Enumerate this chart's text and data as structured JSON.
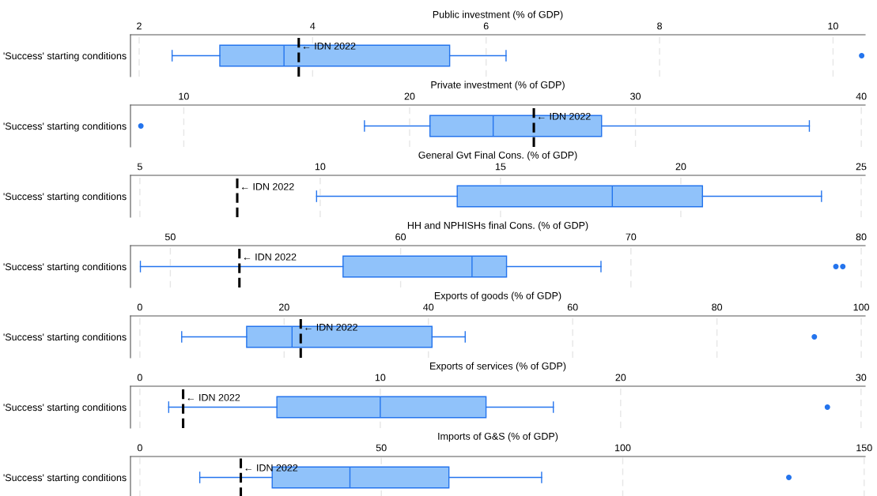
{
  "chart_data": [
    {
      "type": "box",
      "orientation": "horizontal",
      "xlabel": "Public investment (% of GDP)",
      "categories": [
        "'Success' starting conditions"
      ],
      "color": "#90c2fa",
      "grid": "x",
      "xlim": [
        1.9,
        10.37
      ],
      "xticks": [
        2,
        4,
        6,
        8,
        10
      ],
      "boxes": [
        {
          "low": 2.38,
          "q1": 2.93,
          "median": 3.67,
          "q3": 5.58,
          "high": 6.23,
          "outliers": [
            10.33
          ]
        }
      ],
      "ref_lines": [
        {
          "axis": "x",
          "value": 3.84,
          "label": "← IDN 2022",
          "color": "#000000",
          "line_style": "dashed"
        }
      ]
    },
    {
      "type": "box",
      "orientation": "horizontal",
      "xlabel": "Private investment (% of GDP)",
      "categories": [
        "'Success' starting conditions"
      ],
      "color": "#90c2fa",
      "grid": "x",
      "xlim": [
        7.64,
        40.17
      ],
      "xticks": [
        10,
        20,
        30,
        40
      ],
      "boxes": [
        {
          "low": 18.0,
          "q1": 20.9,
          "median": 23.7,
          "q3": 28.5,
          "high": 37.7,
          "outliers": [
            8.1
          ]
        }
      ],
      "ref_lines": [
        {
          "axis": "x",
          "value": 25.5,
          "label": "← IDN 2022",
          "color": "#000000",
          "line_style": "dashed"
        }
      ]
    },
    {
      "type": "box",
      "orientation": "horizontal",
      "xlabel": "General Gvt Final Cons. (% of GDP)",
      "categories": [
        "'Success' starting conditions"
      ],
      "color": "#90c2fa",
      "grid": "x",
      "xlim": [
        4.74,
        25.11
      ],
      "xticks": [
        5,
        10,
        15,
        20,
        25
      ],
      "boxes": [
        {
          "low": 9.9,
          "q1": 13.8,
          "median": 18.1,
          "q3": 20.6,
          "high": 23.9
        }
      ],
      "ref_lines": [
        {
          "axis": "x",
          "value": 7.7,
          "label": "← IDN 2022",
          "color": "#000000",
          "line_style": "dashed"
        }
      ]
    },
    {
      "type": "box",
      "orientation": "horizontal",
      "xlabel": "HH and NPHISHs final Cons. (% of GDP)",
      "categories": [
        "'Success' starting conditions"
      ],
      "color": "#90c2fa",
      "grid": "x",
      "xlim": [
        48.27,
        80.17
      ],
      "xticks": [
        50,
        60,
        70,
        80
      ],
      "boxes": [
        {
          "low": 48.7,
          "q1": 57.5,
          "median": 63.1,
          "q3": 64.6,
          "high": 68.7,
          "outliers": [
            78.9,
            79.2
          ]
        }
      ],
      "ref_lines": [
        {
          "axis": "x",
          "value": 53.0,
          "label": "← IDN 2022",
          "color": "#000000",
          "line_style": "dashed"
        }
      ]
    },
    {
      "type": "box",
      "orientation": "horizontal",
      "xlabel": "Exports of goods (% of GDP)",
      "categories": [
        "'Success' starting conditions"
      ],
      "color": "#90c2fa",
      "grid": "x",
      "xlim": [
        -1.3,
        100.54
      ],
      "xticks": [
        0,
        20,
        40,
        60,
        80,
        100
      ],
      "boxes": [
        {
          "low": 5.8,
          "q1": 14.8,
          "median": 21.1,
          "q3": 40.5,
          "high": 45.1,
          "outliers": [
            93.5
          ]
        }
      ],
      "ref_lines": [
        {
          "axis": "x",
          "value": 22.3,
          "label": "← IDN 2022",
          "color": "#000000",
          "line_style": "dashed"
        }
      ]
    },
    {
      "type": "box",
      "orientation": "horizontal",
      "xlabel": "Exports of services (% of GDP)",
      "categories": [
        "'Success' starting conditions"
      ],
      "color": "#90c2fa",
      "grid": "x",
      "xlim": [
        -0.39,
        30.17
      ],
      "xticks": [
        0,
        10,
        20,
        30
      ],
      "boxes": [
        {
          "low": 1.2,
          "q1": 5.7,
          "median": 10.0,
          "q3": 14.4,
          "high": 17.2,
          "outliers": [
            28.6
          ]
        }
      ],
      "ref_lines": [
        {
          "axis": "x",
          "value": 1.8,
          "label": "← IDN 2022",
          "color": "#000000",
          "line_style": "dashed"
        }
      ]
    },
    {
      "type": "box",
      "orientation": "horizontal",
      "xlabel": "Imports of G&S (% of GDP)",
      "categories": [
        "'Success' starting conditions"
      ],
      "color": "#90c2fa",
      "grid": "x",
      "xlim": [
        -1.95,
        150.2
      ],
      "xticks": [
        0,
        50,
        100,
        150
      ],
      "boxes": [
        {
          "low": 12.4,
          "q1": 27.4,
          "median": 43.5,
          "q3": 64.0,
          "high": 83.2,
          "outliers": [
            134.4
          ]
        }
      ],
      "ref_lines": [
        {
          "axis": "x",
          "value": 20.9,
          "label": "← IDN 2022",
          "color": "#000000",
          "line_style": "dashed"
        }
      ]
    }
  ]
}
